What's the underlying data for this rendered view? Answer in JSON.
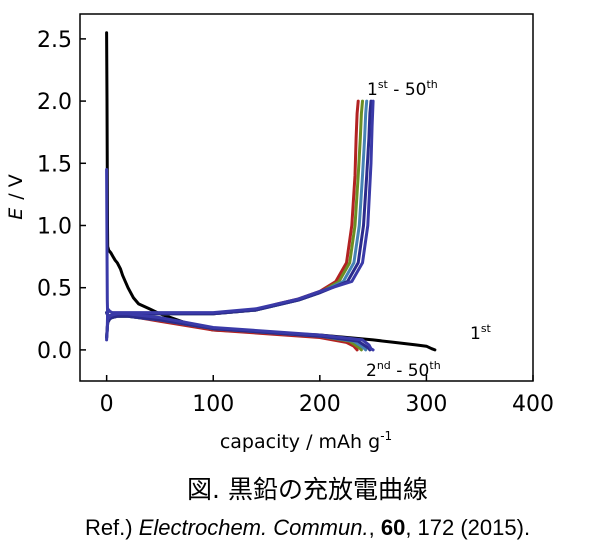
{
  "chart_data": {
    "type": "line",
    "title": "",
    "xlabel": "capacity / mAh g-1",
    "xlabel_main": "capacity / mAh g",
    "xlabel_sup": "-1",
    "ylabel": "E / V",
    "ylabel_E": "E",
    "ylabel_rest": "/  V",
    "xlim": [
      -25,
      400
    ],
    "ylim": [
      -0.25,
      2.7
    ],
    "xticks": [
      "0",
      "100",
      "200",
      "300",
      "400"
    ],
    "yticks": [
      "0.0",
      "0.5",
      "1.0",
      "1.5",
      "2.0",
      "2.5"
    ],
    "grid": false,
    "annotations": {
      "charge_main": "1",
      "charge_sup1": "st",
      "charge_dash": " - 50",
      "charge_sup2": "th",
      "first_main": "1",
      "first_sup": "st",
      "later_main": "2",
      "later_sup1": "nd",
      "later_dash": " - 50",
      "later_sup2": "th"
    },
    "series": [
      {
        "color": "#000000",
        "segments": [
          {
            "x": [
              0,
              0.3,
              0.5,
              0.8,
              1,
              2,
              4,
              6,
              8,
              10,
              13,
              15,
              20,
              25,
              30,
              40,
              50,
              60,
              80,
              100,
              150,
              200,
              250,
              270,
              290,
              300,
              305,
              308
            ],
            "y": [
              2.55,
              2.0,
              1.6,
              1.0,
              0.83,
              0.8,
              0.78,
              0.75,
              0.72,
              0.7,
              0.65,
              0.6,
              0.5,
              0.42,
              0.37,
              0.33,
              0.29,
              0.26,
              0.2,
              0.16,
              0.14,
              0.12,
              0.08,
              0.06,
              0.04,
              0.03,
              0.01,
              0.0
            ]
          }
        ]
      },
      {
        "color": "#b22222",
        "segments": [
          {
            "x": [
              0,
              1,
              3,
              5,
              10,
              20,
              30,
              50,
              100,
              150,
              200,
              225,
              232,
              234,
              235
            ],
            "y": [
              0.1,
              0.22,
              0.25,
              0.26,
              0.27,
              0.27,
              0.26,
              0.23,
              0.16,
              0.13,
              0.1,
              0.06,
              0.03,
              0.01,
              0.0
            ]
          },
          {
            "x": [
              0,
              1,
              2,
              3,
              5,
              10,
              20,
              50,
              100,
              140,
              160,
              180,
              200,
              215,
              225,
              230,
              233,
              234,
              235,
              236
            ],
            "y": [
              0.3,
              0.28,
              0.27,
              0.275,
              0.28,
              0.29,
              0.29,
              0.29,
              0.29,
              0.32,
              0.37,
              0.41,
              0.47,
              0.55,
              0.7,
              1.0,
              1.4,
              1.7,
              1.9,
              2.0
            ]
          }
        ]
      },
      {
        "color": "#6b8e23",
        "segments": [
          {
            "x": [
              0,
              1,
              3,
              5,
              10,
              20,
              30,
              50,
              100,
              150,
              200,
              228,
              235,
              238,
              239
            ],
            "y": [
              0.1,
              0.22,
              0.25,
              0.26,
              0.27,
              0.27,
              0.26,
              0.24,
              0.17,
              0.14,
              0.11,
              0.07,
              0.03,
              0.01,
              0.0
            ]
          },
          {
            "x": [
              0,
              1,
              2,
              3,
              5,
              10,
              20,
              50,
              100,
              140,
              160,
              180,
              200,
              218,
              228,
              233,
              236,
              238,
              239,
              240
            ],
            "y": [
              0.3,
              0.28,
              0.27,
              0.275,
              0.28,
              0.29,
              0.29,
              0.29,
              0.29,
              0.32,
              0.36,
              0.4,
              0.46,
              0.55,
              0.7,
              1.0,
              1.4,
              1.7,
              1.9,
              2.0
            ]
          }
        ]
      },
      {
        "color": "#4682b4",
        "segments": [
          {
            "x": [
              0,
              1,
              3,
              5,
              10,
              20,
              30,
              50,
              100,
              150,
              200,
              232,
              239,
              242,
              243
            ],
            "y": [
              0.1,
              0.22,
              0.25,
              0.26,
              0.27,
              0.27,
              0.26,
              0.24,
              0.17,
              0.14,
              0.11,
              0.07,
              0.03,
              0.01,
              0.0
            ]
          },
          {
            "x": [
              0,
              1,
              2,
              3,
              5,
              10,
              20,
              50,
              100,
              140,
              160,
              180,
              200,
              222,
              232,
              237,
              240,
              242,
              243,
              244
            ],
            "y": [
              0.3,
              0.28,
              0.27,
              0.275,
              0.28,
              0.29,
              0.29,
              0.29,
              0.29,
              0.32,
              0.36,
              0.4,
              0.46,
              0.55,
              0.7,
              1.0,
              1.4,
              1.7,
              1.9,
              2.0
            ]
          }
        ]
      },
      {
        "color": "#2b2b8c",
        "segments": [
          {
            "x": [
              0,
              1,
              3,
              5,
              10,
              20,
              30,
              50,
              100,
              150,
              200,
              236,
              243,
              246,
              247
            ],
            "y": [
              0.1,
              0.22,
              0.25,
              0.26,
              0.27,
              0.27,
              0.26,
              0.24,
              0.17,
              0.14,
              0.11,
              0.07,
              0.03,
              0.01,
              0.0
            ]
          },
          {
            "x": [
              0,
              1,
              2,
              3,
              5,
              10,
              20,
              50,
              100,
              140,
              160,
              180,
              200,
              226,
              236,
              241,
              244,
              246,
              247,
              248
            ],
            "y": [
              0.3,
              0.28,
              0.27,
              0.275,
              0.28,
              0.29,
              0.29,
              0.29,
              0.29,
              0.32,
              0.36,
              0.4,
              0.46,
              0.55,
              0.7,
              1.0,
              1.4,
              1.7,
              1.9,
              2.0
            ]
          }
        ]
      },
      {
        "color": "#3a3aa8",
        "segments": [
          {
            "x": [
              0,
              0.3,
              0.6,
              1,
              2,
              3,
              5,
              10,
              20,
              30,
              50,
              100,
              150,
              200,
              240,
              246,
              248,
              250
            ],
            "y": [
              1.45,
              0.8,
              0.4,
              0.25,
              0.26,
              0.27,
              0.28,
              0.29,
              0.29,
              0.28,
              0.26,
              0.18,
              0.15,
              0.12,
              0.08,
              0.04,
              0.01,
              0.0
            ]
          },
          {
            "x": [
              0,
              0.5,
              1,
              2,
              3,
              5,
              10,
              20,
              50,
              100,
              140,
              160,
              180,
              200,
              230,
              240,
              245,
              248,
              249,
              250
            ],
            "y": [
              0.08,
              0.15,
              0.33,
              0.32,
              0.31,
              0.3,
              0.3,
              0.3,
              0.3,
              0.3,
              0.33,
              0.37,
              0.41,
              0.47,
              0.55,
              0.7,
              1.0,
              1.5,
              1.8,
              2.0
            ]
          }
        ]
      }
    ]
  },
  "figure_caption": "図. 黒鉛の充放電曲線",
  "reference": {
    "prefix": "Ref.) ",
    "journal": "Electrochem. Commun.",
    "sep1": ", ",
    "volume": "60",
    "rest": ", 172 (2015)."
  }
}
